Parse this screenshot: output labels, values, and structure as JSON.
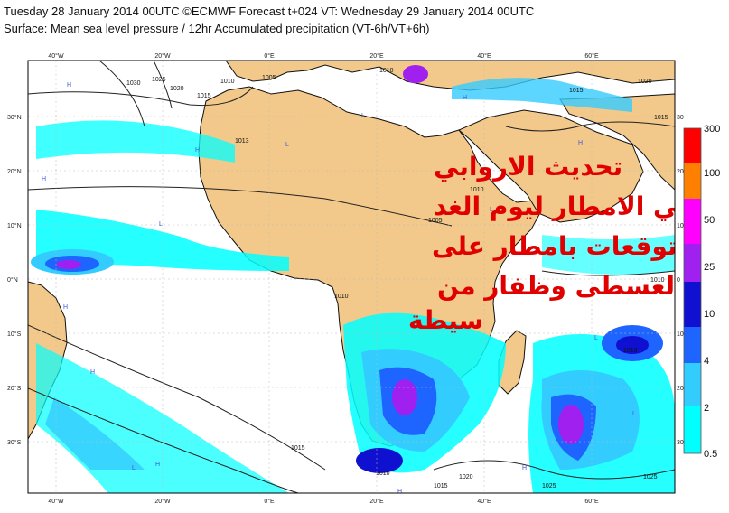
{
  "header": {
    "title": "Tuesday 28 January 2014 00UTC ©ECMWF Forecast t+024 VT: Wednesday 29 January 2014 00UTC",
    "subtitle": "Surface: Mean sea level pressure / 12hr Accumulated precipitation (VT-6h/VT+6h)"
  },
  "axes": {
    "lon_top": [
      "40°W",
      "20°W",
      "0°E",
      "20°E",
      "40°E",
      "60°E"
    ],
    "lon_bottom": [
      "40°W",
      "20°W",
      "0°E",
      "20°E",
      "40°E",
      "60°E"
    ],
    "lat_left": [
      "30°N",
      "20°N",
      "10°N",
      "0°N",
      "10°S",
      "20°S",
      "30°S"
    ],
    "lat_right": [
      "30",
      "20",
      "10",
      "0",
      "10",
      "20",
      "30"
    ]
  },
  "isobars": [
    "1030",
    "1025",
    "1020",
    "1015",
    "1010",
    "1005",
    "1010",
    "1015",
    "1013",
    "1005",
    "1010",
    "1010",
    "1010",
    "1015",
    "1020",
    "1025",
    "1020",
    "1015",
    "1010",
    "1015",
    "1010",
    "1025"
  ],
  "pressure_centers": [
    "H",
    "H",
    "H",
    "L",
    "L",
    "H",
    "L",
    "H",
    "L",
    "H",
    "L",
    "H",
    "L",
    "H",
    "H",
    "L",
    "L",
    "H"
  ],
  "colorbar": {
    "ticks": [
      "300",
      "100",
      "50",
      "25",
      "10",
      "4",
      "2",
      "0.5"
    ],
    "colors": [
      "#ff0000",
      "#ff8000",
      "#ff00ff",
      "#a020f0",
      "#1010d0",
      "#1e64ff",
      "#33ccff",
      "#00ffff"
    ]
  },
  "overlay_text": [
    "تحديث الاروابي",
    "لصباحي الامطار ليوم الغد",
    "وتوقعات بامطار على",
    "سواحل العسطى وظفار من",
    "سيطة"
  ],
  "colors": {
    "land": "#f2c98a",
    "sea": "#ffffff",
    "coast": "#111111",
    "isobar": "#222222",
    "overlay_text": "#e00000"
  }
}
